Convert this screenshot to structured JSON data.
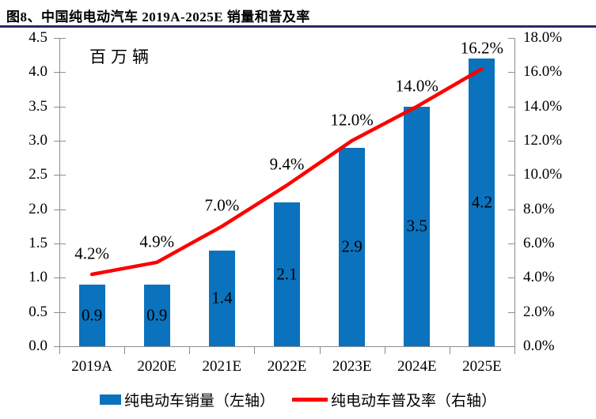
{
  "figure": {
    "title": "图8、中国纯电动汽车 2019A-2025E 销量和普及率",
    "underline_color": "#272C66",
    "background_color": "#FFFFFF",
    "axis_color": "#8E8E8E"
  },
  "chart_data": {
    "type": "bar",
    "subtype": "bar-and-line-combo",
    "title": "中国纯电动汽车 2019A-2025E 销量和普及率",
    "categories": [
      "2019A",
      "2020E",
      "2021E",
      "2022E",
      "2023E",
      "2024E",
      "2025E"
    ],
    "series": [
      {
        "name": "纯电动车销量（左轴）",
        "kind": "bar",
        "axis": "left",
        "color": "#0B72BE",
        "values": [
          0.9,
          0.9,
          1.4,
          2.1,
          2.9,
          3.5,
          4.2
        ],
        "labels": [
          "0.9",
          "0.9",
          "1.4",
          "2.1",
          "2.9",
          "3.5",
          "4.2"
        ]
      },
      {
        "name": "纯电动车普及率（右轴）",
        "kind": "line",
        "axis": "right",
        "color": "#FE0000",
        "values": [
          4.2,
          4.9,
          7.0,
          9.4,
          12.0,
          14.0,
          16.2
        ],
        "labels": [
          "4.2%",
          "4.9%",
          "7.0%",
          "9.4%",
          "12.0%",
          "14.0%",
          "16.2%"
        ]
      }
    ],
    "left_axis": {
      "unit_label": "百万辆",
      "min": 0.0,
      "max": 4.5,
      "step": 0.5,
      "ticks": [
        "4.5",
        "4.0",
        "3.5",
        "3.0",
        "2.5",
        "2.0",
        "1.5",
        "1.0",
        "0.5",
        "0.0"
      ]
    },
    "right_axis": {
      "min": 0.0,
      "max": 18.0,
      "step": 2.0,
      "ticks": [
        "18.0%",
        "16.0%",
        "14.0%",
        "12.0%",
        "10.0%",
        "8.0%",
        "6.0%",
        "4.0%",
        "2.0%",
        "0.0%"
      ]
    },
    "grid": false,
    "legend_position": "bottom"
  }
}
